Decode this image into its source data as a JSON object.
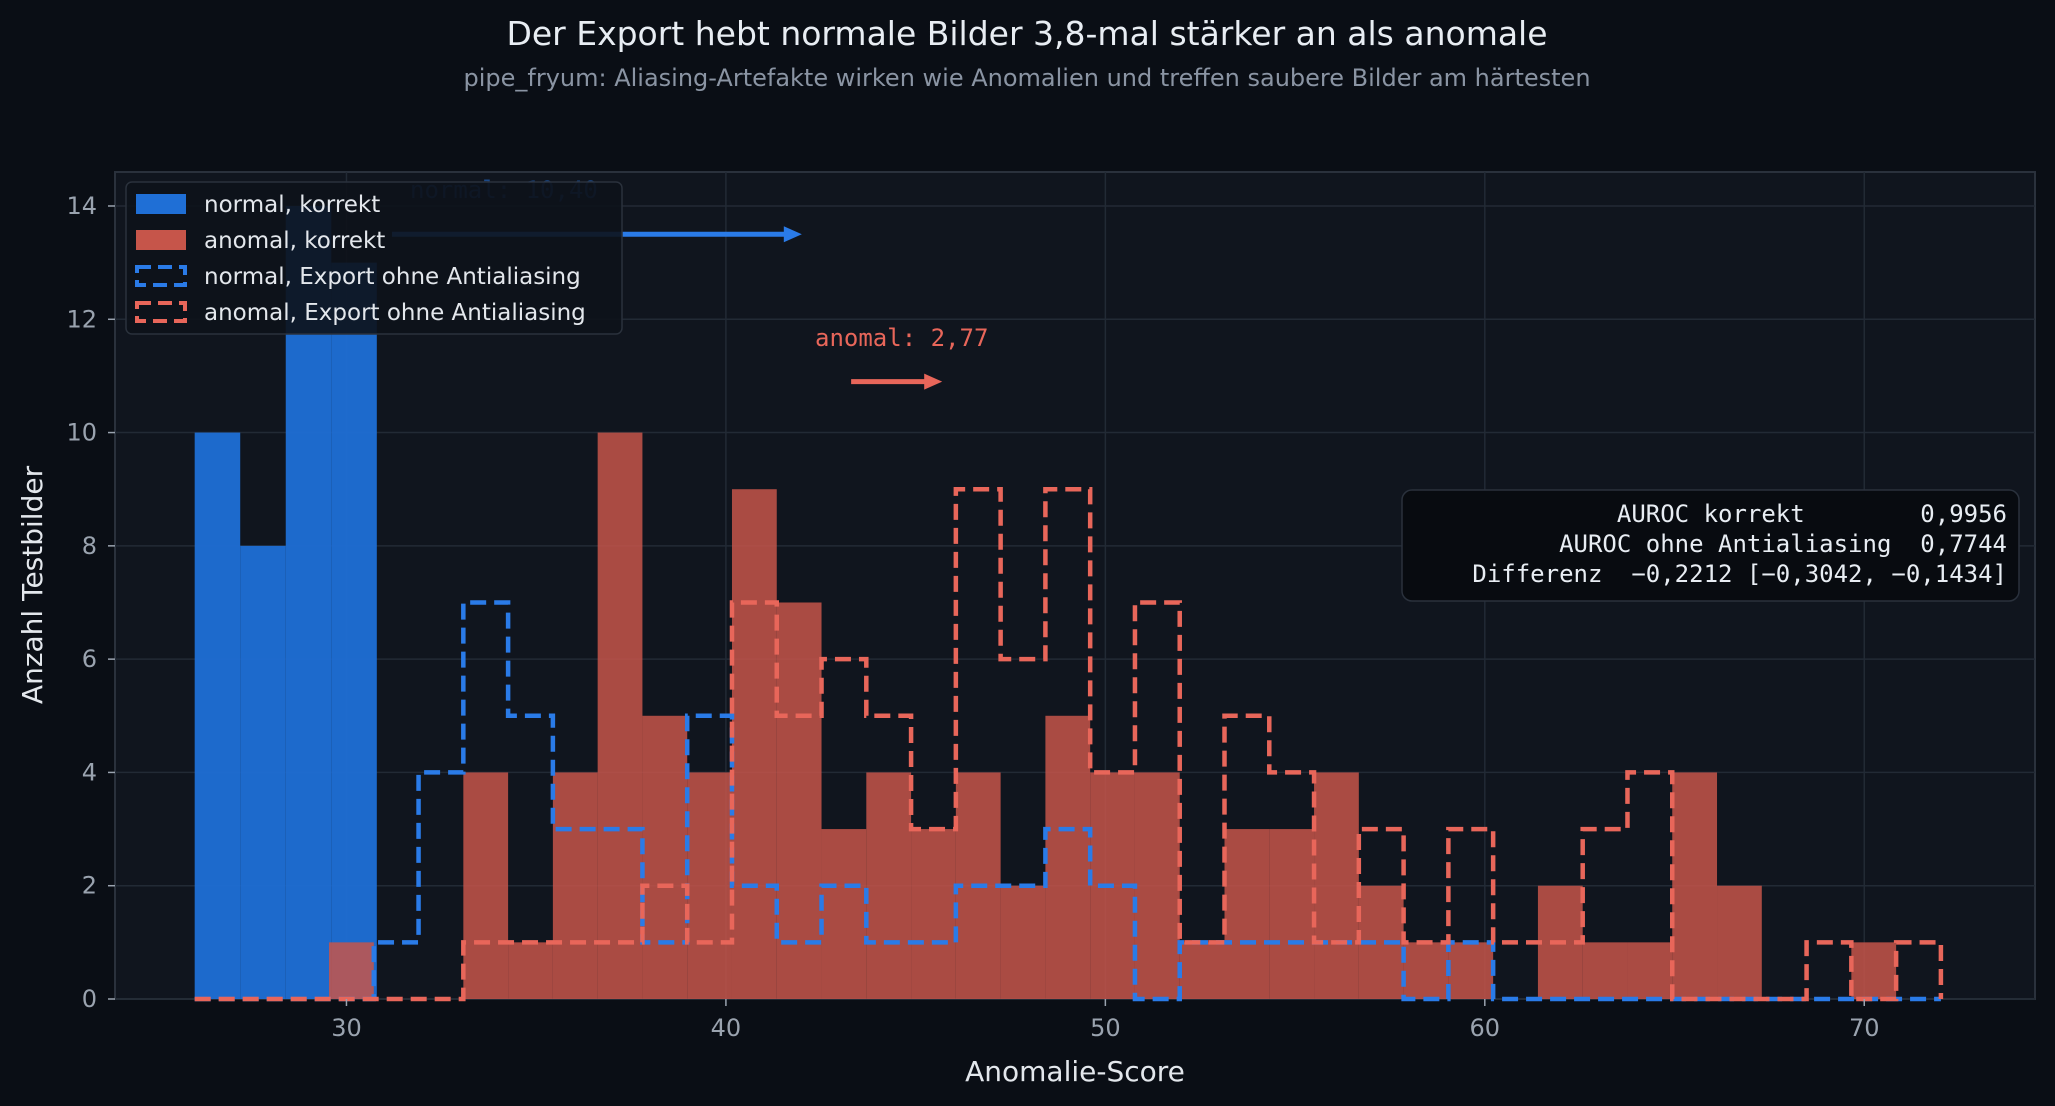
{
  "chart_data": {
    "type": "histogram",
    "title": "Der Export hebt normale Bilder 3,8-mal stärker an als anomale",
    "subtitle": "pipe_fryum: Aliasing-Artefakte wirken wie Anomalien und treffen saubere Bilder am härtesten",
    "xlabel": "Anomalie-Score",
    "ylabel": "Anzahl Testbilder",
    "xlim": [
      23.9,
      74.5
    ],
    "ylim": [
      0,
      14.6
    ],
    "x_ticks": [
      "30",
      "40",
      "50",
      "60",
      "70"
    ],
    "y_ticks": [
      "0",
      "2",
      "4",
      "6",
      "8",
      "10",
      "12",
      "14"
    ],
    "grid": true,
    "legend_position": "top-left",
    "colors": {
      "normal": "#1f6fd6",
      "anomal": "#c6554a",
      "anomal_outline": "#e8665a",
      "normal_outline": "#2a7be8",
      "background": "#0a0e15",
      "plot_background": "#10151e"
    },
    "series": [
      {
        "name": "normal, korrekt",
        "style": "filled",
        "bin_edges": [
          26.0,
          27.2,
          28.4,
          29.6,
          30.8
        ],
        "counts": [
          10,
          8,
          14,
          13
        ]
      },
      {
        "name": "anomal, korrekt",
        "style": "filled",
        "bin_edges": [
          26.0,
          27.18,
          28.36,
          29.54,
          30.72,
          31.9,
          33.08,
          34.26,
          35.44,
          36.62,
          37.8,
          38.98,
          40.16,
          41.34,
          42.52,
          43.7,
          44.88,
          46.06,
          47.24,
          48.42,
          49.6,
          50.78,
          51.96,
          53.14,
          54.32,
          55.5,
          56.68,
          57.86,
          59.04,
          60.22,
          61.4,
          62.58,
          63.76,
          64.94,
          66.12,
          67.3,
          68.48,
          69.66,
          70.84,
          72.02
        ],
        "counts": [
          0,
          0,
          0,
          1,
          0,
          0,
          4,
          1,
          4,
          10,
          5,
          4,
          9,
          7,
          3,
          4,
          3,
          4,
          2,
          5,
          4,
          4,
          1,
          3,
          3,
          4,
          2,
          1,
          1,
          0,
          2,
          1,
          1,
          4,
          2,
          0,
          0,
          1,
          0
        ]
      },
      {
        "name": "normal, Export ohne Antialiasing",
        "style": "dashed-step",
        "bin_edges": [
          26.0,
          27.18,
          28.36,
          29.54,
          30.72,
          31.9,
          33.08,
          34.26,
          35.44,
          36.62,
          37.8,
          38.98,
          40.16,
          41.34,
          42.52,
          43.7,
          44.88,
          46.06,
          47.24,
          48.42,
          49.6,
          50.78,
          51.96,
          53.14,
          54.32,
          55.5,
          56.68,
          57.86,
          59.04,
          60.22,
          61.4,
          62.58,
          63.76,
          64.94,
          66.12,
          67.3,
          68.48,
          69.66,
          70.84,
          72.02
        ],
        "counts": [
          0,
          0,
          0,
          0,
          1,
          4,
          7,
          5,
          3,
          3,
          1,
          5,
          2,
          1,
          2,
          1,
          1,
          2,
          2,
          3,
          2,
          0,
          1,
          1,
          1,
          1,
          1,
          0,
          1,
          0,
          0,
          0,
          0,
          0,
          0,
          0,
          0,
          0,
          0
        ]
      },
      {
        "name": "anomal, Export ohne Antialiasing",
        "style": "dashed-step",
        "bin_edges": [
          26.0,
          27.18,
          28.36,
          29.54,
          30.72,
          31.9,
          33.08,
          34.26,
          35.44,
          36.62,
          37.8,
          38.98,
          40.16,
          41.34,
          42.52,
          43.7,
          44.88,
          46.06,
          47.24,
          48.42,
          49.6,
          50.78,
          51.96,
          53.14,
          54.32,
          55.5,
          56.68,
          57.86,
          59.04,
          60.22,
          61.4,
          62.58,
          63.76,
          64.94,
          66.12,
          67.3,
          68.48,
          69.66,
          70.84,
          72.02
        ],
        "counts": [
          0,
          0,
          0,
          0,
          0,
          0,
          1,
          1,
          1,
          1,
          2,
          1,
          7,
          5,
          6,
          5,
          3,
          9,
          6,
          9,
          4,
          7,
          1,
          5,
          4,
          1,
          3,
          1,
          3,
          1,
          1,
          3,
          4,
          0,
          0,
          0,
          1,
          0,
          1
        ]
      }
    ],
    "annotations": [
      {
        "text": "normal: 10,40",
        "x_start": 31.2,
        "x_end": 42.0,
        "y": 13.5,
        "series": "normal"
      },
      {
        "text": "anomal: 2,77",
        "x_start": 43.3,
        "x_end": 45.7,
        "y": 10.9,
        "series": "anomal"
      }
    ],
    "stats_box": {
      "rows": [
        "      AUROC korrekt        0,9956",
        "  AUROC ohne Antialiasing  0,7744",
        "Differenz  −0,2212 [−0,3042, −0,1434]"
      ]
    }
  }
}
